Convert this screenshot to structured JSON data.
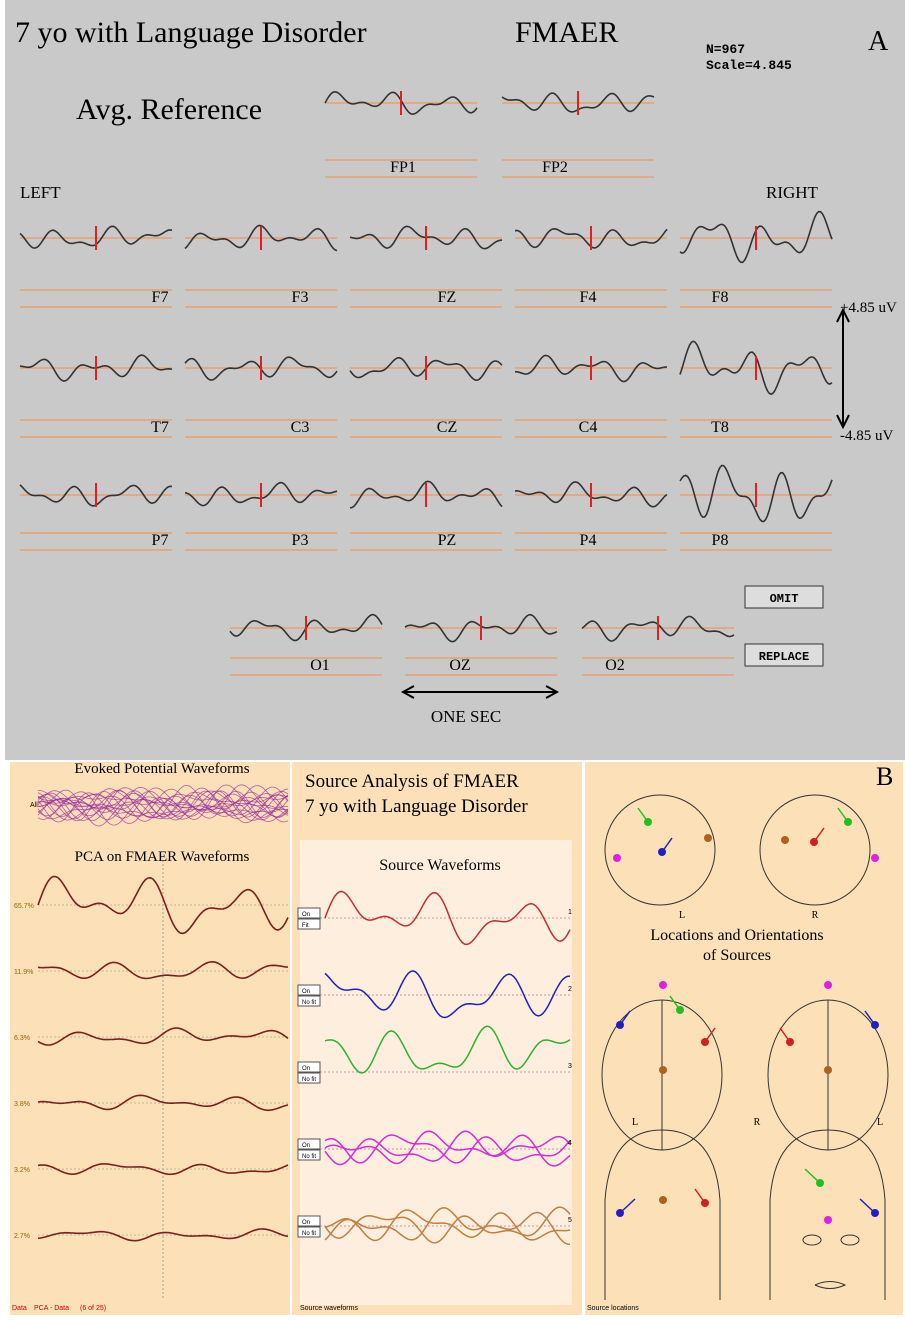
{
  "panel_a": {
    "title": "7 yo with Language Disorder",
    "stimulus": "FMAER",
    "n": "N=967",
    "scale": "Scale=4.845",
    "label": "A",
    "reference": "Avg. Reference",
    "side_left": "LEFT",
    "side_right": "RIGHT",
    "electrodes": [
      "FP1",
      "FP2",
      "F7",
      "F3",
      "FZ",
      "F4",
      "F8",
      "T7",
      "C3",
      "CZ",
      "C4",
      "T8",
      "P7",
      "P3",
      "PZ",
      "P4",
      "P8",
      "O1",
      "OZ",
      "O2"
    ],
    "scale_top": "+4.85 uV",
    "scale_bottom": "-4.85 uV",
    "buttons": [
      "OMIT",
      "REPLACE"
    ],
    "time_bar": "ONE SEC"
  },
  "panel_b": {
    "label": "B",
    "pca": {
      "evoked_title": "Evoked Potential Waveforms",
      "all": "All",
      "title": "PCA on FMAER Waveforms",
      "components": [
        "65.7%",
        "11.9%",
        "6.3%",
        "3.8%",
        "3.2%",
        "2.7%"
      ],
      "footer": [
        "Data",
        "PCA - Data",
        "(6 of 25)"
      ]
    },
    "source": {
      "title_1": "Source Analysis of FMAER",
      "title_2": "7 yo with Language Disorder",
      "waveforms_title": "Source Waveforms",
      "buttons": [
        [
          "On",
          "Fit"
        ],
        [
          "On",
          "No fit"
        ],
        [
          "On",
          "No fit"
        ],
        [
          "On",
          "No fit"
        ],
        [
          "On",
          "No fit"
        ]
      ],
      "numbers": [
        "1",
        "2",
        "3",
        "4",
        "5"
      ],
      "footer": "Source waveforms"
    },
    "locations": {
      "title_1": "Locations and Orientations",
      "title_2": "of Sources",
      "side_labels": [
        "L",
        "R",
        "L",
        "R",
        "L"
      ],
      "footer": "Source locations"
    }
  }
}
